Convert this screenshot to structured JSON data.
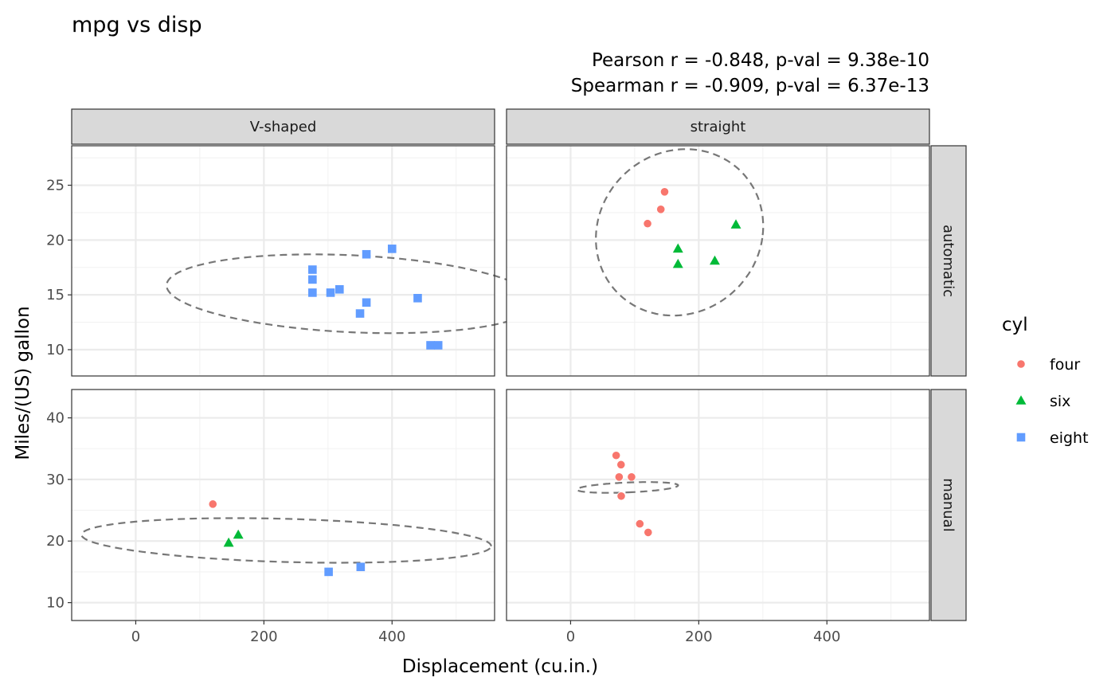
{
  "chart_data": {
    "type": "scatter",
    "title": "mpg vs disp",
    "subtitle_lines": [
      "Pearson r = -0.848, p-val = 9.38e-10",
      "Spearman r = -0.909, p-val = 6.37e-13"
    ],
    "xlabel": "Displacement (cu.in.)",
    "ylabel": "Miles/(US) gallon",
    "xlim": [
      -100,
      560
    ],
    "x_ticks": [
      0,
      200,
      400
    ],
    "facet_cols": [
      "V-shaped",
      "straight"
    ],
    "facet_rows": [
      {
        "name": "automatic",
        "ylim": [
          7.6,
          28.6
        ],
        "y_ticks": [
          10,
          15,
          20,
          25
        ]
      },
      {
        "name": "manual",
        "ylim": [
          7.1,
          44.6
        ],
        "y_ticks": [
          10,
          20,
          30,
          40
        ]
      }
    ],
    "legend": {
      "title": "cyl",
      "placement": "right",
      "entries": [
        {
          "key": "four",
          "label": "four",
          "color": "#F8766D",
          "shape": "circle"
        },
        {
          "key": "six",
          "label": "six",
          "color": "#00BA38",
          "shape": "triangle"
        },
        {
          "key": "eight",
          "label": "eight",
          "color": "#619CFF",
          "shape": "square"
        }
      ]
    },
    "grid": true,
    "ellipse_style": "dashed",
    "panels": [
      {
        "col": "V-shaped",
        "row": "automatic",
        "ellipse": {
          "center": [
            337,
            15.1
          ],
          "a": 290,
          "b": 3.5,
          "angle_deg": -5.5
        },
        "points": [
          {
            "x": 275.8,
            "y": 17.3,
            "cyl": "eight"
          },
          {
            "x": 275.8,
            "y": 16.4,
            "cyl": "eight"
          },
          {
            "x": 275.8,
            "y": 15.2,
            "cyl": "eight"
          },
          {
            "x": 304,
            "y": 15.2,
            "cyl": "eight"
          },
          {
            "x": 318,
            "y": 15.5,
            "cyl": "eight"
          },
          {
            "x": 350,
            "y": 13.3,
            "cyl": "eight"
          },
          {
            "x": 360,
            "y": 18.7,
            "cyl": "eight"
          },
          {
            "x": 360,
            "y": 14.3,
            "cyl": "eight"
          },
          {
            "x": 400,
            "y": 19.2,
            "cyl": "eight"
          },
          {
            "x": 440,
            "y": 14.7,
            "cyl": "eight"
          },
          {
            "x": 460,
            "y": 10.4,
            "cyl": "eight"
          },
          {
            "x": 472,
            "y": 10.4,
            "cyl": "eight"
          }
        ]
      },
      {
        "col": "straight",
        "row": "automatic",
        "ellipse": {
          "center": [
            170,
            20.7
          ],
          "a": 130,
          "b": 7.6,
          "angle_deg": -3.4
        },
        "points": [
          {
            "x": 120.1,
            "y": 21.5,
            "cyl": "four"
          },
          {
            "x": 140.8,
            "y": 22.8,
            "cyl": "four"
          },
          {
            "x": 146.7,
            "y": 24.4,
            "cyl": "four"
          },
          {
            "x": 167.6,
            "y": 19.2,
            "cyl": "six"
          },
          {
            "x": 167.6,
            "y": 17.8,
            "cyl": "six"
          },
          {
            "x": 225,
            "y": 18.1,
            "cyl": "six"
          },
          {
            "x": 258,
            "y": 21.4,
            "cyl": "six"
          }
        ]
      },
      {
        "col": "V-shaped",
        "row": "manual",
        "ellipse": {
          "center": [
            235,
            20.1
          ],
          "a": 320,
          "b": 3.5,
          "angle_deg": -3.0
        },
        "points": [
          {
            "x": 120.3,
            "y": 26,
            "cyl": "four"
          },
          {
            "x": 145,
            "y": 19.7,
            "cyl": "six"
          },
          {
            "x": 160,
            "y": 21,
            "cyl": "six"
          },
          {
            "x": 301,
            "y": 15,
            "cyl": "eight"
          },
          {
            "x": 351,
            "y": 15.8,
            "cyl": "eight"
          }
        ]
      },
      {
        "col": "straight",
        "row": "manual",
        "ellipse": {
          "center": [
            88.8,
            28.7
          ],
          "a": 14.1,
          "b": 4.5,
          "angle_deg": -85.5
        },
        "points": [
          {
            "x": 71.1,
            "y": 33.9,
            "cyl": "four"
          },
          {
            "x": 75.7,
            "y": 30.4,
            "cyl": "four"
          },
          {
            "x": 78.7,
            "y": 32.4,
            "cyl": "four"
          },
          {
            "x": 79,
            "y": 27.3,
            "cyl": "four"
          },
          {
            "x": 95.1,
            "y": 30.4,
            "cyl": "four"
          },
          {
            "x": 108,
            "y": 22.8,
            "cyl": "four"
          },
          {
            "x": 121,
            "y": 21.4,
            "cyl": "four"
          }
        ]
      }
    ]
  }
}
